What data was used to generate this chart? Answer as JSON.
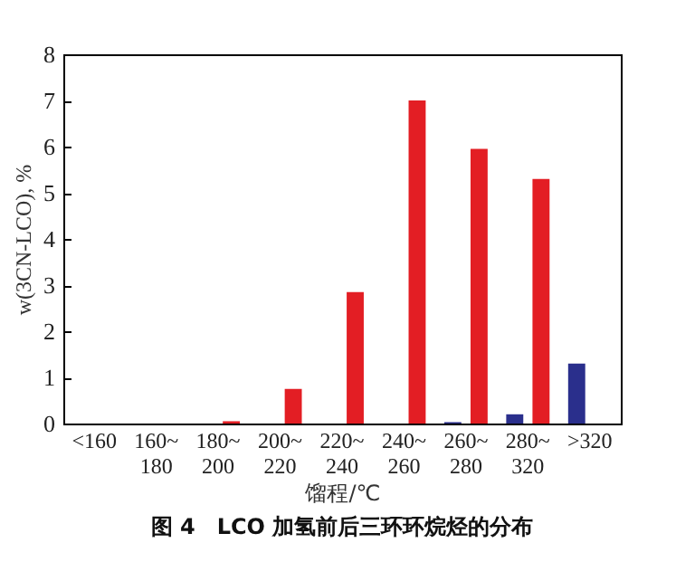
{
  "chart_data": {
    "type": "bar",
    "title": "图 4　LCO 加氢前后三环环烷烃的分布",
    "xlabel": "馏程/℃",
    "ylabel": "w(3CN-LCO), %",
    "categories": [
      "<160",
      "160~\n180",
      "180~\n200",
      "200~\n220",
      "220~\n240",
      "240~\n260",
      "260~\n280",
      "280~\n320",
      ">320"
    ],
    "series": [
      {
        "color": "#2a2f8c",
        "values": [
          0,
          0,
          0,
          0,
          0,
          0,
          0.03,
          0.2,
          1.3
        ]
      },
      {
        "color": "#e31e24",
        "values": [
          0,
          0,
          0.05,
          0.75,
          2.85,
          7.0,
          5.95,
          5.3,
          0
        ]
      }
    ],
    "ylim": [
      0,
      8
    ],
    "yticks": [
      0,
      1,
      2,
      3,
      4,
      5,
      6,
      7,
      8
    ],
    "grid": false,
    "legend": false
  }
}
